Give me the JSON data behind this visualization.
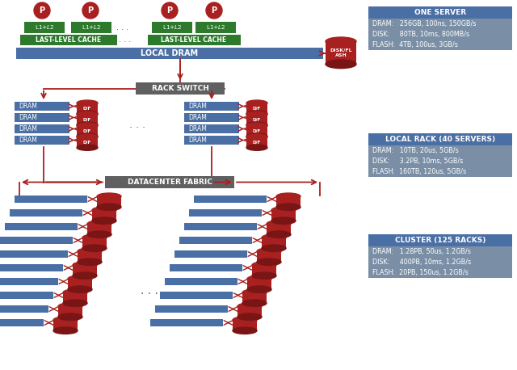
{
  "bg_color": "#ffffff",
  "green_color": "#2d7a2d",
  "blue_color": "#4a6fa5",
  "gray_color": "#7a7a7a",
  "red_color": "#a82020",
  "dark_red": "#7a1515",
  "dark_gray": "#606060",
  "text_white": "#ffffff",
  "info_bg": "#7a8fa6",
  "info_title_bg": "#4a6fa5",
  "one_server": {
    "title": "ONE SERVER",
    "lines": [
      "DRAM:   256GB, 100ns, 150GB/s",
      "DISK:     80TB, 10ms, 800MB/s",
      "FLASH:  4TB, 100us, 3GB/s"
    ]
  },
  "local_rack": {
    "title": "LOCAL RACK (40 SERVERS)",
    "lines": [
      "DRAM:   10TB, 20us, 5GB/s",
      "DISK:     3.2PB, 10ms, 5GB/s",
      "FLASH:  160TB, 120us, 5GB/s"
    ]
  },
  "cluster": {
    "title": "CLUSTER (125 RACKS)",
    "lines": [
      "DRAM:   1.28PB, 50us, 1.2GB/s",
      "DISK:     400PB, 10ms, 1.2GB/s",
      "FLASH:  20PB, 150us, 1.2GB/s"
    ]
  }
}
